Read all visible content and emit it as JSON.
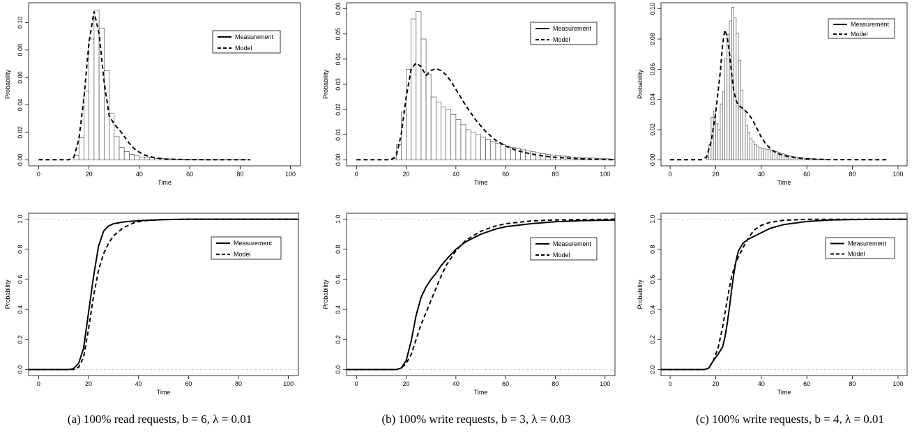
{
  "captions": [
    "(a)  100% read requests, b = 6, λ = 0.01",
    "(b)  100% write requests, b = 3, λ = 0.03",
    "(c)  100% write requests, b = 4, λ = 0.01"
  ],
  "chart_data": [
    {
      "id": "a-pdf",
      "type": "bar",
      "xlabel": "Time",
      "ylabel": "Probability",
      "xlim": [
        0,
        100
      ],
      "ylim": [
        0,
        0.11
      ],
      "xticks": [
        0,
        20,
        40,
        60,
        80,
        100
      ],
      "yticks": [
        0,
        0.02,
        0.04,
        0.06,
        0.08,
        0.1
      ],
      "ytick_labels": [
        "0.00",
        "0.02",
        "0.04",
        "0.06",
        "0.08",
        "0.10"
      ],
      "legend": [
        "Measurement",
        "Model"
      ],
      "legend_position": "top-right",
      "bin_width": 2,
      "bin_start": 0,
      "values": [
        0,
        0,
        0,
        0,
        0,
        0,
        0,
        0.003,
        0.016,
        0.05,
        0.088,
        0.109,
        0.096,
        0.065,
        0.034,
        0.017,
        0.009,
        0.006,
        0.004,
        0.003,
        0.002,
        0.002,
        0.0015,
        0.001,
        0.001,
        0.0008,
        0.0006,
        0.0005,
        0.0004,
        0.0003,
        0.0003,
        0.0002,
        0.0002,
        0.0001,
        0.0001,
        0.0001,
        0.0001,
        0.0001,
        0.0001,
        0.0001,
        0.0001,
        0.0001
      ],
      "model_points": [
        [
          0,
          0
        ],
        [
          12,
          0
        ],
        [
          14,
          0.002
        ],
        [
          16,
          0.015
        ],
        [
          18,
          0.045
        ],
        [
          20,
          0.086
        ],
        [
          22,
          0.108
        ],
        [
          24,
          0.092
        ],
        [
          26,
          0.057
        ],
        [
          28,
          0.032
        ],
        [
          30,
          0.026
        ],
        [
          32,
          0.022
        ],
        [
          34,
          0.017
        ],
        [
          36,
          0.012
        ],
        [
          38,
          0.008
        ],
        [
          40,
          0.0055
        ],
        [
          42,
          0.0035
        ],
        [
          46,
          0.0015
        ],
        [
          50,
          0.0006
        ],
        [
          60,
          0.0001
        ],
        [
          70,
          0
        ],
        [
          84,
          0
        ]
      ]
    },
    {
      "id": "b-pdf",
      "type": "bar",
      "xlabel": "Time",
      "ylabel": "Probability",
      "xlim": [
        0,
        100
      ],
      "ylim": [
        0,
        0.06
      ],
      "xticks": [
        0,
        20,
        40,
        60,
        80,
        100
      ],
      "yticks": [
        0,
        0.01,
        0.02,
        0.03,
        0.04,
        0.05,
        0.06
      ],
      "ytick_labels": [
        "0.00",
        "0.01",
        "0.02",
        "0.03",
        "0.04",
        "0.05",
        "0.06"
      ],
      "legend": [
        "Measurement",
        "Model"
      ],
      "legend_position": "top-right",
      "bin_width": 2,
      "bin_start": 0,
      "values": [
        0,
        0,
        0,
        0,
        0,
        0,
        0,
        0.0005,
        0.006,
        0.019,
        0.036,
        0.056,
        0.059,
        0.048,
        0.034,
        0.025,
        0.023,
        0.021,
        0.02,
        0.018,
        0.016,
        0.014,
        0.012,
        0.011,
        0.01,
        0.009,
        0.008,
        0.0072,
        0.0066,
        0.006,
        0.0054,
        0.0049,
        0.0044,
        0.004,
        0.0036,
        0.0032,
        0.0028,
        0.0025,
        0.0022,
        0.0019,
        0.0017,
        0.0015,
        0.0013,
        0.0011,
        0.001,
        0.0009,
        0.0008,
        0.0007,
        0.0006,
        0.0005,
        0.0004,
        0.0003
      ],
      "model_points": [
        [
          0,
          0
        ],
        [
          14,
          0
        ],
        [
          16,
          0.0015
        ],
        [
          18,
          0.01
        ],
        [
          20,
          0.025
        ],
        [
          22,
          0.036
        ],
        [
          24,
          0.0385
        ],
        [
          26,
          0.037
        ],
        [
          28,
          0.0335
        ],
        [
          30,
          0.0355
        ],
        [
          32,
          0.0362
        ],
        [
          34,
          0.0355
        ],
        [
          36,
          0.0338
        ],
        [
          38,
          0.0312
        ],
        [
          40,
          0.028
        ],
        [
          44,
          0.0215
        ],
        [
          48,
          0.0158
        ],
        [
          52,
          0.0112
        ],
        [
          56,
          0.0078
        ],
        [
          60,
          0.0055
        ],
        [
          64,
          0.0039
        ],
        [
          68,
          0.0028
        ],
        [
          72,
          0.002
        ],
        [
          76,
          0.0014
        ],
        [
          80,
          0.001
        ],
        [
          90,
          0.0004
        ],
        [
          100,
          0.0001
        ],
        [
          104,
          0
        ]
      ]
    },
    {
      "id": "c-pdf",
      "type": "bar",
      "xlabel": "Time",
      "ylabel": "Probability",
      "xlim": [
        0,
        100
      ],
      "ylim": [
        0,
        0.1
      ],
      "xticks": [
        0,
        20,
        40,
        60,
        80,
        100
      ],
      "yticks": [
        0,
        0.02,
        0.04,
        0.06,
        0.08,
        0.1
      ],
      "ytick_labels": [
        "0.00",
        "0.02",
        "0.04",
        "0.06",
        "0.08",
        "0.10"
      ],
      "legend": [
        "Measurement",
        "Model"
      ],
      "legend_position": "top-right",
      "bin_width": 1,
      "bin_start": 0,
      "values": [
        0,
        0,
        0,
        0,
        0,
        0,
        0,
        0,
        0,
        0,
        0,
        0,
        0,
        0,
        0,
        0,
        0.002,
        0.01,
        0.028,
        0.032,
        0.024,
        0.02,
        0.037,
        0.045,
        0.067,
        0.083,
        0.092,
        0.101,
        0.094,
        0.084,
        0.066,
        0.046,
        0.033,
        0.023,
        0.018,
        0.014,
        0.012,
        0.01,
        0.009,
        0.008,
        0.0075,
        0.0072,
        0.007,
        0.0067,
        0.0064,
        0.006,
        0.0055,
        0.005,
        0.0045,
        0.004,
        0.0035,
        0.003,
        0.0026,
        0.0023,
        0.002,
        0.0018,
        0.0016,
        0.0014,
        0.0012,
        0.001,
        0.0009,
        0.0008,
        0.0007,
        0.0006,
        0.0005,
        0.0004,
        0.0003,
        0.0003,
        0.0002,
        0.0002
      ],
      "model_points": [
        [
          0,
          0
        ],
        [
          14,
          0
        ],
        [
          16,
          0.002
        ],
        [
          18,
          0.012
        ],
        [
          20,
          0.031
        ],
        [
          22,
          0.058
        ],
        [
          23,
          0.076
        ],
        [
          24,
          0.086
        ],
        [
          25,
          0.082
        ],
        [
          26,
          0.071
        ],
        [
          27,
          0.057
        ],
        [
          28,
          0.045
        ],
        [
          29,
          0.039
        ],
        [
          30,
          0.036
        ],
        [
          32,
          0.034
        ],
        [
          34,
          0.031
        ],
        [
          36,
          0.027
        ],
        [
          38,
          0.021
        ],
        [
          40,
          0.015
        ],
        [
          42,
          0.0105
        ],
        [
          44,
          0.0075
        ],
        [
          46,
          0.0052
        ],
        [
          48,
          0.0037
        ],
        [
          52,
          0.0021
        ],
        [
          56,
          0.0012
        ],
        [
          60,
          0.0006
        ],
        [
          70,
          0.0001
        ],
        [
          96,
          0
        ]
      ]
    },
    {
      "id": "a-cdf",
      "type": "line",
      "xlabel": "Time",
      "ylabel": "Probability",
      "xlim": [
        0,
        100
      ],
      "ylim": [
        0,
        1
      ],
      "xticks": [
        0,
        20,
        40,
        60,
        80,
        100
      ],
      "yticks": [
        0,
        0.2,
        0.4,
        0.6,
        0.8,
        1
      ],
      "ytick_labels": [
        "0.0",
        "0.2",
        "0.4",
        "0.6",
        "0.8",
        "1.0"
      ],
      "reference_lines": [
        0,
        1
      ],
      "legend": [
        "Measurement",
        "Model"
      ],
      "legend_position": "top-right",
      "series": [
        {
          "name": "Measurement",
          "style": "solid",
          "points": [
            [
              -4,
              0
            ],
            [
              12,
              0
            ],
            [
              14,
              0.006
            ],
            [
              16,
              0.04
            ],
            [
              18,
              0.14
            ],
            [
              20,
              0.38
            ],
            [
              22,
              0.62
            ],
            [
              24,
              0.82
            ],
            [
              26,
              0.92
            ],
            [
              28,
              0.955
            ],
            [
              30,
              0.97
            ],
            [
              34,
              0.982
            ],
            [
              40,
              0.99
            ],
            [
              50,
              0.997
            ],
            [
              60,
              1
            ],
            [
              104,
              1
            ]
          ]
        },
        {
          "name": "Model",
          "style": "dashed",
          "points": [
            [
              -4,
              0
            ],
            [
              14,
              0
            ],
            [
              16,
              0.015
            ],
            [
              18,
              0.08
            ],
            [
              20,
              0.27
            ],
            [
              22,
              0.49
            ],
            [
              24,
              0.66
            ],
            [
              26,
              0.77
            ],
            [
              28,
              0.84
            ],
            [
              30,
              0.89
            ],
            [
              34,
              0.945
            ],
            [
              38,
              0.975
            ],
            [
              42,
              0.99
            ],
            [
              50,
              0.998
            ],
            [
              60,
              1
            ],
            [
              104,
              1
            ]
          ]
        }
      ]
    },
    {
      "id": "b-cdf",
      "type": "line",
      "xlabel": "Time",
      "ylabel": "Probability",
      "xlim": [
        0,
        100
      ],
      "ylim": [
        0,
        1
      ],
      "xticks": [
        0,
        20,
        40,
        60,
        80,
        100
      ],
      "yticks": [
        0,
        0.2,
        0.4,
        0.6,
        0.8,
        1
      ],
      "ytick_labels": [
        "0.0",
        "0.2",
        "0.4",
        "0.6",
        "0.8",
        "1.0"
      ],
      "reference_lines": [
        0,
        1
      ],
      "legend": [
        "Measurement",
        "Model"
      ],
      "legend_position": "top-right",
      "series": [
        {
          "name": "Measurement",
          "style": "solid",
          "points": [
            [
              -4,
              0
            ],
            [
              16,
              0
            ],
            [
              18,
              0.01
            ],
            [
              20,
              0.06
            ],
            [
              22,
              0.19
            ],
            [
              24,
              0.36
            ],
            [
              26,
              0.48
            ],
            [
              28,
              0.55
            ],
            [
              30,
              0.6
            ],
            [
              32,
              0.64
            ],
            [
              34,
              0.69
            ],
            [
              36,
              0.73
            ],
            [
              40,
              0.8
            ],
            [
              44,
              0.85
            ],
            [
              50,
              0.9
            ],
            [
              56,
              0.935
            ],
            [
              60,
              0.95
            ],
            [
              70,
              0.97
            ],
            [
              80,
              0.983
            ],
            [
              90,
              0.99
            ],
            [
              104,
              0.995
            ]
          ]
        },
        {
          "name": "Model",
          "style": "dashed",
          "points": [
            [
              -4,
              0
            ],
            [
              16,
              0
            ],
            [
              18,
              0.01
            ],
            [
              20,
              0.04
            ],
            [
              22,
              0.1
            ],
            [
              24,
              0.2
            ],
            [
              26,
              0.3
            ],
            [
              28,
              0.38
            ],
            [
              30,
              0.46
            ],
            [
              32,
              0.54
            ],
            [
              34,
              0.62
            ],
            [
              36,
              0.69
            ],
            [
              40,
              0.79
            ],
            [
              44,
              0.86
            ],
            [
              50,
              0.92
            ],
            [
              56,
              0.955
            ],
            [
              60,
              0.97
            ],
            [
              70,
              0.988
            ],
            [
              80,
              0.995
            ],
            [
              90,
              0.998
            ],
            [
              104,
              1
            ]
          ]
        }
      ]
    },
    {
      "id": "c-cdf",
      "type": "line",
      "xlabel": "Time",
      "ylabel": "Probability",
      "xlim": [
        0,
        100
      ],
      "ylim": [
        0,
        1
      ],
      "xticks": [
        0,
        20,
        40,
        60,
        80,
        100
      ],
      "yticks": [
        0,
        0.2,
        0.4,
        0.6,
        0.8,
        1
      ],
      "ytick_labels": [
        "0.0",
        "0.2",
        "0.4",
        "0.6",
        "0.8",
        "1.0"
      ],
      "reference_lines": [
        0,
        1
      ],
      "legend": [
        "Measurement",
        "Model"
      ],
      "legend_position": "top-right",
      "series": [
        {
          "name": "Measurement",
          "style": "solid",
          "points": [
            [
              -4,
              0
            ],
            [
              15,
              0
            ],
            [
              17,
              0.01
            ],
            [
              19,
              0.06
            ],
            [
              21,
              0.1
            ],
            [
              23,
              0.15
            ],
            [
              24,
              0.21
            ],
            [
              25,
              0.3
            ],
            [
              26,
              0.41
            ],
            [
              27,
              0.53
            ],
            [
              28,
              0.64
            ],
            [
              29,
              0.73
            ],
            [
              30,
              0.79
            ],
            [
              32,
              0.84
            ],
            [
              34,
              0.865
            ],
            [
              36,
              0.88
            ],
            [
              40,
              0.91
            ],
            [
              44,
              0.94
            ],
            [
              50,
              0.965
            ],
            [
              60,
              0.985
            ],
            [
              70,
              0.995
            ],
            [
              80,
              0.998
            ],
            [
              104,
              1
            ]
          ]
        },
        {
          "name": "Model",
          "style": "dashed",
          "points": [
            [
              -4,
              0
            ],
            [
              15,
              0
            ],
            [
              17,
              0.01
            ],
            [
              19,
              0.06
            ],
            [
              21,
              0.14
            ],
            [
              23,
              0.28
            ],
            [
              25,
              0.46
            ],
            [
              27,
              0.62
            ],
            [
              29,
              0.72
            ],
            [
              31,
              0.78
            ],
            [
              33,
              0.84
            ],
            [
              35,
              0.89
            ],
            [
              37,
              0.93
            ],
            [
              40,
              0.96
            ],
            [
              44,
              0.98
            ],
            [
              50,
              0.993
            ],
            [
              60,
              0.999
            ],
            [
              104,
              1
            ]
          ]
        }
      ]
    }
  ]
}
